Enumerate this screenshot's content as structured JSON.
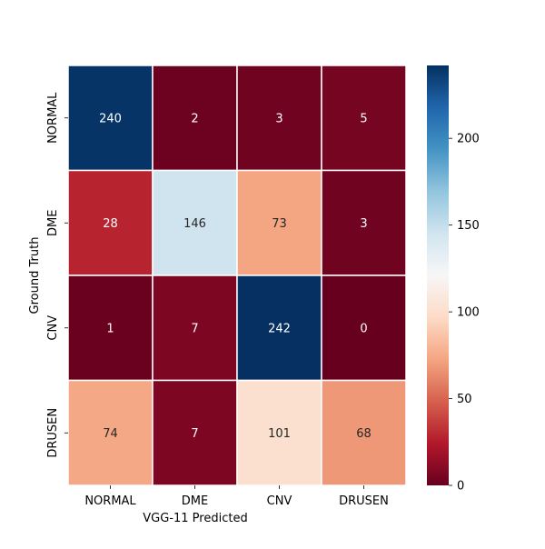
{
  "chart_data": {
    "type": "heatmap",
    "title": "",
    "xlabel": "VGG-11 Predicted",
    "ylabel": "Ground Truth",
    "x_categories": [
      "NORMAL",
      "DME",
      "CNV",
      "DRUSEN"
    ],
    "y_categories": [
      "NORMAL",
      "DME",
      "CNV",
      "DRUSEN"
    ],
    "values": [
      [
        240,
        2,
        3,
        5
      ],
      [
        28,
        146,
        73,
        3
      ],
      [
        1,
        7,
        242,
        0
      ],
      [
        74,
        7,
        101,
        68
      ]
    ],
    "colormap": "RdBu",
    "vmin": 0,
    "vmax": 242,
    "colorbar_ticks": [
      0,
      50,
      100,
      150,
      200
    ],
    "annotation_light_color": "#ffffff",
    "annotation_dark_color": "#262626",
    "grid_line_color": "#ffffff"
  }
}
